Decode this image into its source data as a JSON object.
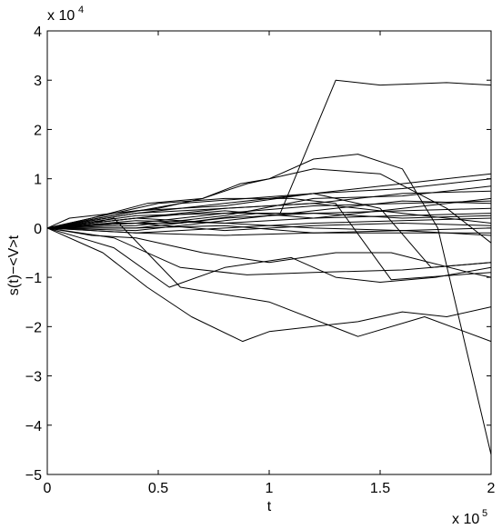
{
  "chart_data": {
    "type": "line",
    "title": "",
    "xlabel": "t",
    "ylabel": "s(t)−<V>t",
    "x_multiplier_label": "x 10",
    "x_multiplier_exp": "5",
    "y_multiplier_label": "x 10",
    "y_multiplier_exp": "4",
    "xlim": [
      0,
      2
    ],
    "ylim": [
      -5,
      4
    ],
    "xticks": [
      0,
      0.5,
      1,
      1.5,
      2
    ],
    "xtick_labels": [
      "0",
      "0.5",
      "1",
      "1.5",
      "2"
    ],
    "yticks": [
      -5,
      -4,
      -3,
      -2,
      -1,
      0,
      1,
      2,
      3,
      4
    ],
    "ytick_labels": [
      "−5",
      "−4",
      "−3",
      "−2",
      "−1",
      "0",
      "1",
      "2",
      "3",
      "4"
    ],
    "grid": false,
    "legend": "none",
    "line_color": "#000000",
    "series": [
      {
        "x": [
          0,
          0.25,
          0.45,
          0.65,
          0.88,
          1.0,
          1.2,
          1.4,
          1.6,
          1.8,
          2.0
        ],
        "y": [
          0,
          -0.5,
          -1.2,
          -1.8,
          -2.3,
          -2.1,
          -2.0,
          -1.9,
          -1.7,
          -1.8,
          -1.6
        ]
      },
      {
        "x": [
          0,
          0.1,
          0.3,
          0.5,
          0.7,
          0.87,
          1.0,
          1.2,
          1.5,
          1.8,
          2.0
        ],
        "y": [
          0,
          0.2,
          0.3,
          0.4,
          0.6,
          0.9,
          1.0,
          1.2,
          1.1,
          0.4,
          -0.3
        ]
      },
      {
        "x": [
          0,
          0.3,
          0.6,
          0.95,
          1.05,
          1.3,
          1.5,
          1.8,
          2.0
        ],
        "y": [
          0,
          0.1,
          0.1,
          0.3,
          0.3,
          3.0,
          2.9,
          2.95,
          2.9
        ]
      },
      {
        "x": [
          0,
          0.2,
          0.3,
          0.6,
          1.0,
          1.4,
          1.7,
          2.0
        ],
        "y": [
          0,
          0.1,
          0.2,
          -1.2,
          -1.5,
          -2.2,
          -1.8,
          -2.3
        ]
      },
      {
        "x": [
          0,
          0.2,
          0.45,
          0.7,
          0.9,
          1.0,
          1.2,
          1.4,
          1.6,
          1.76,
          2.0
        ],
        "y": [
          0,
          0.2,
          0.5,
          0.6,
          0.9,
          1.0,
          1.4,
          1.5,
          1.2,
          0.0,
          -4.6
        ]
      },
      {
        "x": [
          0,
          0.35,
          0.6,
          0.9,
          1.2,
          1.5,
          1.73,
          2.0
        ],
        "y": [
          0,
          0.3,
          0.5,
          0.6,
          0.7,
          0.4,
          -0.8,
          -0.7
        ]
      },
      {
        "x": [
          0,
          0.2,
          0.4,
          0.7,
          1.0,
          1.3,
          1.55,
          1.9,
          2.0
        ],
        "y": [
          0,
          -0.15,
          -0.2,
          -0.5,
          -0.7,
          -0.5,
          -0.5,
          -0.9,
          -1.0
        ]
      },
      {
        "x": [
          0,
          0.3,
          0.6,
          0.9,
          1.2,
          1.6,
          2.0
        ],
        "y": [
          0,
          -0.2,
          -0.8,
          -0.95,
          -0.9,
          -0.85,
          -0.7
        ]
      },
      {
        "x": [
          0,
          0.15,
          0.3,
          0.55,
          0.8,
          1.1,
          1.3,
          1.5,
          1.75,
          2.0
        ],
        "y": [
          0,
          -0.2,
          -0.4,
          -1.2,
          -0.8,
          -0.6,
          -1.0,
          -1.1,
          -1.0,
          -0.8
        ]
      },
      {
        "x": [
          0,
          0.2,
          0.5,
          0.8,
          1.1,
          1.3,
          1.55,
          2.0
        ],
        "y": [
          0,
          0.2,
          0.5,
          0.6,
          0.6,
          0.5,
          -1.05,
          -0.9
        ]
      },
      {
        "x": [
          0,
          0.4,
          0.8,
          1.2,
          1.6,
          2.0
        ],
        "y": [
          0,
          0.3,
          0.5,
          0.7,
          0.8,
          1.0
        ]
      },
      {
        "x": [
          0,
          0.4,
          0.8,
          1.2,
          1.6,
          2.0
        ],
        "y": [
          0,
          0.2,
          0.4,
          0.5,
          0.7,
          0.75
        ]
      },
      {
        "x": [
          0,
          0.4,
          0.8,
          1.2,
          1.6,
          2.0
        ],
        "y": [
          0,
          0.1,
          0.3,
          0.45,
          0.5,
          0.55
        ]
      },
      {
        "x": [
          0,
          0.4,
          0.8,
          1.2,
          1.6,
          2.0
        ],
        "y": [
          0,
          0.0,
          0.2,
          0.3,
          0.35,
          0.4
        ]
      },
      {
        "x": [
          0,
          0.4,
          0.8,
          1.2,
          1.6,
          2.0
        ],
        "y": [
          0,
          0.15,
          0.1,
          0.2,
          0.25,
          0.3
        ]
      },
      {
        "x": [
          0,
          0.4,
          0.8,
          1.2,
          1.6,
          2.0
        ],
        "y": [
          0,
          -0.1,
          0.0,
          0.1,
          0.15,
          0.2
        ]
      },
      {
        "x": [
          0,
          0.4,
          0.8,
          1.2,
          1.6,
          2.0
        ],
        "y": [
          0,
          0.2,
          0.1,
          0.0,
          -0.05,
          0.0
        ]
      },
      {
        "x": [
          0,
          0.4,
          0.8,
          1.2,
          1.6,
          2.0
        ],
        "y": [
          0,
          -0.1,
          -0.15,
          -0.1,
          -0.1,
          -0.1
        ]
      },
      {
        "x": [
          0,
          0.4,
          0.8,
          1.2,
          1.6,
          2.0
        ],
        "y": [
          0,
          0.3,
          0.4,
          0.5,
          0.3,
          0.1
        ]
      },
      {
        "x": [
          0,
          0.4,
          0.8,
          1.2,
          1.6,
          2.0
        ],
        "y": [
          0,
          0.05,
          0.25,
          0.6,
          0.65,
          0.85
        ]
      },
      {
        "x": [
          0,
          0.4,
          0.8,
          1.2,
          1.6,
          2.0
        ],
        "y": [
          0,
          0.2,
          0.35,
          0.2,
          0.4,
          0.6
        ]
      },
      {
        "x": [
          0,
          0.4,
          0.8,
          1.2,
          1.6,
          2.0
        ],
        "y": [
          0,
          -0.05,
          0.15,
          0.35,
          0.55,
          0.5
        ]
      },
      {
        "x": [
          0,
          0.4,
          0.8,
          1.2,
          1.6,
          2.0
        ],
        "y": [
          0,
          0.25,
          0.3,
          0.3,
          0.2,
          0.25
        ]
      },
      {
        "x": [
          0,
          0.4,
          0.8,
          1.2,
          1.6,
          2.0
        ],
        "y": [
          0,
          0.1,
          -0.05,
          0.05,
          0.1,
          0.05
        ]
      },
      {
        "x": [
          0,
          0.4,
          0.8,
          1.2,
          1.6,
          2.0
        ],
        "y": [
          0,
          0.35,
          0.45,
          0.7,
          0.9,
          1.1
        ]
      },
      {
        "x": [
          0,
          0.4,
          0.8,
          1.2,
          1.6,
          2.0
        ],
        "y": [
          0,
          0.0,
          0.05,
          -0.1,
          -0.05,
          -0.15
        ]
      }
    ]
  }
}
